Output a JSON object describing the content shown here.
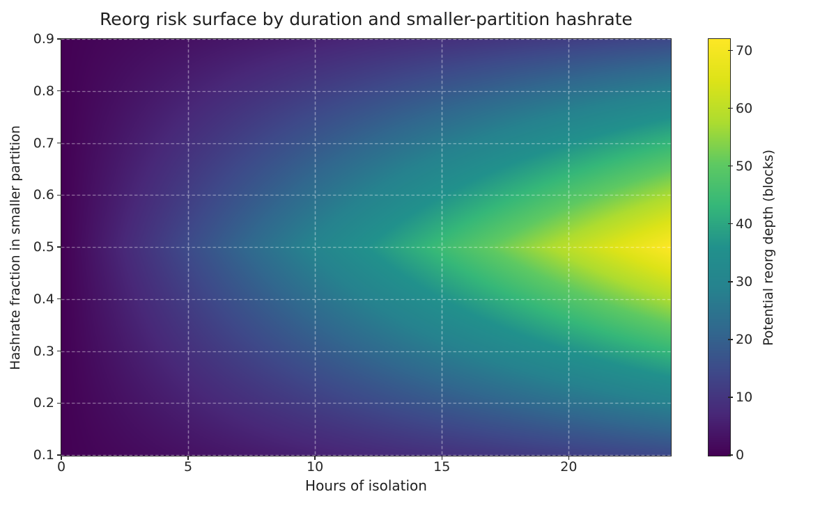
{
  "figure": {
    "title": "Reorg risk surface by duration and smaller-partition hashrate",
    "background_color": "#ffffff",
    "text_color": "#1f1f1f",
    "spine_color": "#262626"
  },
  "axes": {
    "xlabel": "Hours of isolation",
    "ylabel": "Hashrate fraction in smaller partition",
    "xticks": [
      0,
      5,
      10,
      15,
      20
    ],
    "xtick_labels": [
      "0",
      "5",
      "10",
      "15",
      "20"
    ],
    "yticks": [
      0.1,
      0.2,
      0.3,
      0.4,
      0.5,
      0.6,
      0.7,
      0.8,
      0.9
    ],
    "ytick_labels": [
      "0.1",
      "0.2",
      "0.3",
      "0.4",
      "0.5",
      "0.6",
      "0.7",
      "0.8",
      "0.9"
    ],
    "grid": {
      "visible": true,
      "linestyle": "dashed",
      "color": "rgba(255,255,255,0.55)"
    }
  },
  "colorbar": {
    "label": "Potential reorg depth (blocks)",
    "ticks": [
      0,
      10,
      20,
      30,
      40,
      50,
      60,
      70
    ],
    "tick_labels": [
      "0",
      "10",
      "20",
      "30",
      "40",
      "50",
      "60",
      "70"
    ]
  },
  "chart_data": {
    "type": "heatmap",
    "title": "Reorg risk surface by duration and smaller-partition hashrate",
    "xlabel": "Hours of isolation",
    "ylabel": "Hashrate fraction in smaller partition",
    "colorbar_label": "Potential reorg depth (blocks)",
    "xlim": [
      0,
      24
    ],
    "ylim": [
      0.1,
      0.9
    ],
    "vmin": 0,
    "vmax": 72,
    "grid_on": true,
    "colormap": "viridis",
    "colormap_stops": [
      [
        0.0,
        "#440154"
      ],
      [
        0.1,
        "#482878"
      ],
      [
        0.2,
        "#3e4989"
      ],
      [
        0.3,
        "#31688e"
      ],
      [
        0.4,
        "#26828e"
      ],
      [
        0.5,
        "#21918c"
      ],
      [
        0.6,
        "#35b779"
      ],
      [
        0.7,
        "#5ec962"
      ],
      [
        0.8,
        "#addc30"
      ],
      [
        0.9,
        "#dde318"
      ],
      [
        1.0,
        "#fde725"
      ]
    ],
    "x": [
      0,
      2,
      4,
      6,
      8,
      10,
      12,
      14,
      16,
      18,
      20,
      22,
      24
    ],
    "y": [
      0.1,
      0.15,
      0.2,
      0.25,
      0.3,
      0.35,
      0.4,
      0.45,
      0.5,
      0.55,
      0.6,
      0.65,
      0.7,
      0.75,
      0.8,
      0.85,
      0.9
    ],
    "values": [
      [
        0,
        1.2,
        2.4,
        3.6,
        4.8,
        6,
        7.2,
        8.4,
        9.6,
        10.8,
        12,
        13.2,
        14.4
      ],
      [
        0,
        1.8,
        3.6,
        5.4,
        7.2,
        9,
        10.8,
        12.6,
        14.4,
        16.2,
        18,
        19.8,
        21.6
      ],
      [
        0,
        2.4,
        4.8,
        7.2,
        9.6,
        12,
        14.4,
        16.8,
        19.2,
        21.6,
        24,
        26.4,
        28.8
      ],
      [
        0,
        3,
        6,
        9,
        12,
        15,
        18,
        21,
        24,
        27,
        30,
        33,
        36
      ],
      [
        0,
        3.6,
        7.2,
        10.8,
        14.4,
        18,
        21.6,
        25.2,
        28.8,
        32.4,
        36,
        39.6,
        43.2
      ],
      [
        0,
        4.2,
        8.4,
        12.6,
        16.8,
        21,
        25.2,
        29.4,
        33.6,
        37.8,
        42,
        46.2,
        50.4
      ],
      [
        0,
        4.8,
        9.6,
        14.4,
        19.2,
        24,
        28.8,
        33.6,
        38.4,
        43.2,
        48,
        52.8,
        57.6
      ],
      [
        0,
        5.4,
        10.8,
        16.2,
        21.6,
        27,
        32.4,
        37.8,
        43.2,
        48.6,
        54,
        59.4,
        64.8
      ],
      [
        0,
        6,
        12,
        18,
        24,
        30,
        36,
        42,
        48,
        54,
        60,
        66,
        72
      ],
      [
        0,
        5.4,
        10.8,
        16.2,
        21.6,
        27,
        32.4,
        37.8,
        43.2,
        48.6,
        54,
        59.4,
        64.8
      ],
      [
        0,
        4.8,
        9.6,
        14.4,
        19.2,
        24,
        28.8,
        33.6,
        38.4,
        43.2,
        48,
        52.8,
        57.6
      ],
      [
        0,
        4.2,
        8.4,
        12.6,
        16.8,
        21,
        25.2,
        29.4,
        33.6,
        37.8,
        42,
        46.2,
        50.4
      ],
      [
        0,
        3.6,
        7.2,
        10.8,
        14.4,
        18,
        21.6,
        25.2,
        28.8,
        32.4,
        36,
        39.6,
        43.2
      ],
      [
        0,
        3,
        6,
        9,
        12,
        15,
        18,
        21,
        24,
        27,
        30,
        33,
        36
      ],
      [
        0,
        2.4,
        4.8,
        7.2,
        9.6,
        12,
        14.4,
        16.8,
        19.2,
        21.6,
        24,
        26.4,
        28.8
      ],
      [
        0,
        1.8,
        3.6,
        5.4,
        7.2,
        9,
        10.8,
        12.6,
        14.4,
        16.2,
        18,
        19.8,
        21.6
      ],
      [
        0,
        1.2,
        2.4,
        3.6,
        4.8,
        6,
        7.2,
        8.4,
        9.6,
        10.8,
        12,
        13.2,
        14.4
      ]
    ]
  }
}
